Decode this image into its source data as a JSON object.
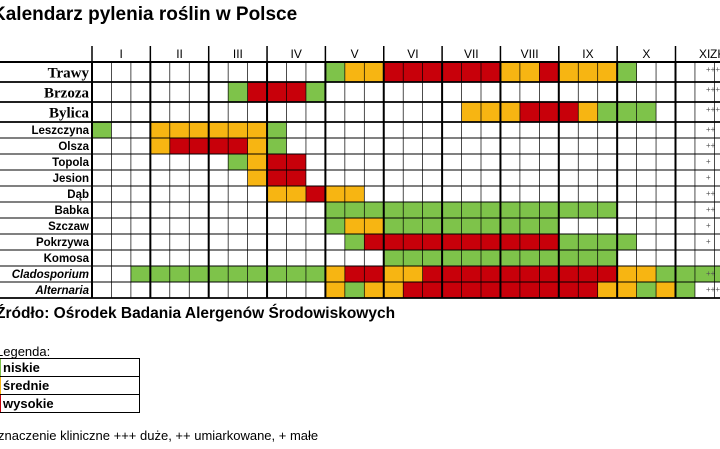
{
  "title": "Kalendarz pylenia roślin w Polsce",
  "source": "Źródło: Ośrodek Badania Alergenów Środowiskowych",
  "legend": {
    "title": "Legenda:",
    "items": [
      {
        "label": "niskie",
        "color": "#7ec34a"
      },
      {
        "label": "średnie",
        "color": "#f7b512"
      },
      {
        "label": "wysokie",
        "color": "#c8000a"
      }
    ]
  },
  "note": "znaczenie kliniczne +++ duże, ++ umiarkowane, + małe",
  "chart_data": {
    "type": "heatmap",
    "months": [
      "I",
      "II",
      "III",
      "IV",
      "V",
      "VI",
      "VII",
      "VIII",
      "IX",
      "X",
      "XI",
      "XII"
    ],
    "zk_header": "ZK",
    "level_colors": {
      "1": "#7ec34a",
      "2": "#f7b512",
      "3": "#c8000a"
    },
    "rows": [
      {
        "name": "Trawy",
        "style": "main",
        "zk": "+++",
        "cells": [
          0,
          0,
          0,
          0,
          0,
          0,
          0,
          0,
          0,
          0,
          0,
          0,
          1,
          2,
          2,
          3,
          3,
          3,
          3,
          3,
          3,
          2,
          2,
          3,
          2,
          2,
          2,
          1,
          0,
          0,
          0,
          0,
          0,
          0,
          0,
          0
        ]
      },
      {
        "name": "Brzoza",
        "style": "main",
        "zk": "+++",
        "cells": [
          0,
          0,
          0,
          0,
          0,
          0,
          0,
          1,
          3,
          3,
          3,
          1,
          0,
          0,
          0,
          0,
          0,
          0,
          0,
          0,
          0,
          0,
          0,
          0,
          0,
          0,
          0,
          0,
          0,
          0,
          0,
          0,
          0,
          0,
          0,
          0
        ]
      },
      {
        "name": "Bylica",
        "style": "main",
        "zk": "+++",
        "cells": [
          0,
          0,
          0,
          0,
          0,
          0,
          0,
          0,
          0,
          0,
          0,
          0,
          0,
          0,
          0,
          0,
          0,
          0,
          0,
          2,
          2,
          2,
          3,
          3,
          3,
          2,
          1,
          1,
          1,
          0,
          0,
          0,
          0,
          0,
          0,
          0
        ]
      },
      {
        "name": "Leszczyna",
        "style": "normal",
        "zk": "++",
        "cells": [
          1,
          0,
          0,
          2,
          2,
          2,
          2,
          2,
          2,
          1,
          0,
          0,
          0,
          0,
          0,
          0,
          0,
          0,
          0,
          0,
          0,
          0,
          0,
          0,
          0,
          0,
          0,
          0,
          0,
          0,
          0,
          0,
          0,
          0,
          0,
          0
        ]
      },
      {
        "name": "Olsza",
        "style": "normal",
        "zk": "++",
        "cells": [
          0,
          0,
          0,
          2,
          3,
          3,
          3,
          3,
          2,
          1,
          0,
          0,
          0,
          0,
          0,
          0,
          0,
          0,
          0,
          0,
          0,
          0,
          0,
          0,
          0,
          0,
          0,
          0,
          0,
          0,
          0,
          0,
          0,
          0,
          0,
          0
        ]
      },
      {
        "name": "Topola",
        "style": "normal",
        "zk": "+",
        "cells": [
          0,
          0,
          0,
          0,
          0,
          0,
          0,
          1,
          2,
          3,
          3,
          0,
          0,
          0,
          0,
          0,
          0,
          0,
          0,
          0,
          0,
          0,
          0,
          0,
          0,
          0,
          0,
          0,
          0,
          0,
          0,
          0,
          0,
          0,
          0,
          0
        ]
      },
      {
        "name": "Jesion",
        "style": "normal",
        "zk": "+",
        "cells": [
          0,
          0,
          0,
          0,
          0,
          0,
          0,
          0,
          2,
          3,
          3,
          0,
          0,
          0,
          0,
          0,
          0,
          0,
          0,
          0,
          0,
          0,
          0,
          0,
          0,
          0,
          0,
          0,
          0,
          0,
          0,
          0,
          0,
          0,
          0,
          0
        ]
      },
      {
        "name": "Dąb",
        "style": "normal",
        "zk": "++",
        "cells": [
          0,
          0,
          0,
          0,
          0,
          0,
          0,
          0,
          0,
          2,
          2,
          3,
          2,
          2,
          0,
          0,
          0,
          0,
          0,
          0,
          0,
          0,
          0,
          0,
          0,
          0,
          0,
          0,
          0,
          0,
          0,
          0,
          0,
          0,
          0,
          0
        ]
      },
      {
        "name": "Babka",
        "style": "normal",
        "zk": "++",
        "cells": [
          0,
          0,
          0,
          0,
          0,
          0,
          0,
          0,
          0,
          0,
          0,
          0,
          1,
          1,
          1,
          1,
          1,
          1,
          1,
          1,
          1,
          1,
          1,
          1,
          1,
          1,
          1,
          0,
          0,
          0,
          0,
          0,
          0,
          0,
          0,
          0
        ]
      },
      {
        "name": "Szczaw",
        "style": "normal",
        "zk": "+",
        "cells": [
          0,
          0,
          0,
          0,
          0,
          0,
          0,
          0,
          0,
          0,
          0,
          0,
          1,
          2,
          2,
          1,
          1,
          1,
          1,
          1,
          1,
          1,
          1,
          1,
          0,
          0,
          0,
          0,
          0,
          0,
          0,
          0,
          0,
          0,
          0,
          0
        ]
      },
      {
        "name": "Pokrzywa",
        "style": "normal",
        "zk": "+",
        "cells": [
          0,
          0,
          0,
          0,
          0,
          0,
          0,
          0,
          0,
          0,
          0,
          0,
          0,
          1,
          3,
          3,
          3,
          3,
          3,
          3,
          3,
          3,
          3,
          3,
          1,
          1,
          1,
          1,
          0,
          0,
          0,
          0,
          0,
          0,
          0,
          0
        ]
      },
      {
        "name": "Komosa",
        "style": "normal",
        "zk": "",
        "cells": [
          0,
          0,
          0,
          0,
          0,
          0,
          0,
          0,
          0,
          0,
          0,
          0,
          0,
          0,
          0,
          1,
          1,
          1,
          1,
          1,
          1,
          1,
          1,
          1,
          1,
          1,
          1,
          0,
          0,
          0,
          0,
          0,
          0,
          0,
          0,
          0
        ]
      },
      {
        "name": "Cladosporium",
        "style": "italic",
        "zk": "++",
        "cells": [
          0,
          0,
          1,
          1,
          1,
          1,
          1,
          1,
          1,
          1,
          1,
          1,
          2,
          3,
          3,
          2,
          2,
          3,
          3,
          3,
          3,
          3,
          3,
          3,
          3,
          3,
          3,
          2,
          2,
          1,
          1,
          1,
          1,
          1,
          0,
          0
        ]
      },
      {
        "name": "Alternaria",
        "style": "italic",
        "zk": "+++",
        "cells": [
          0,
          0,
          0,
          0,
          0,
          0,
          0,
          0,
          0,
          0,
          0,
          0,
          2,
          1,
          2,
          2,
          3,
          3,
          3,
          3,
          3,
          3,
          3,
          3,
          3,
          3,
          2,
          2,
          1,
          2,
          1,
          0,
          0,
          0,
          0,
          0
        ]
      }
    ]
  }
}
